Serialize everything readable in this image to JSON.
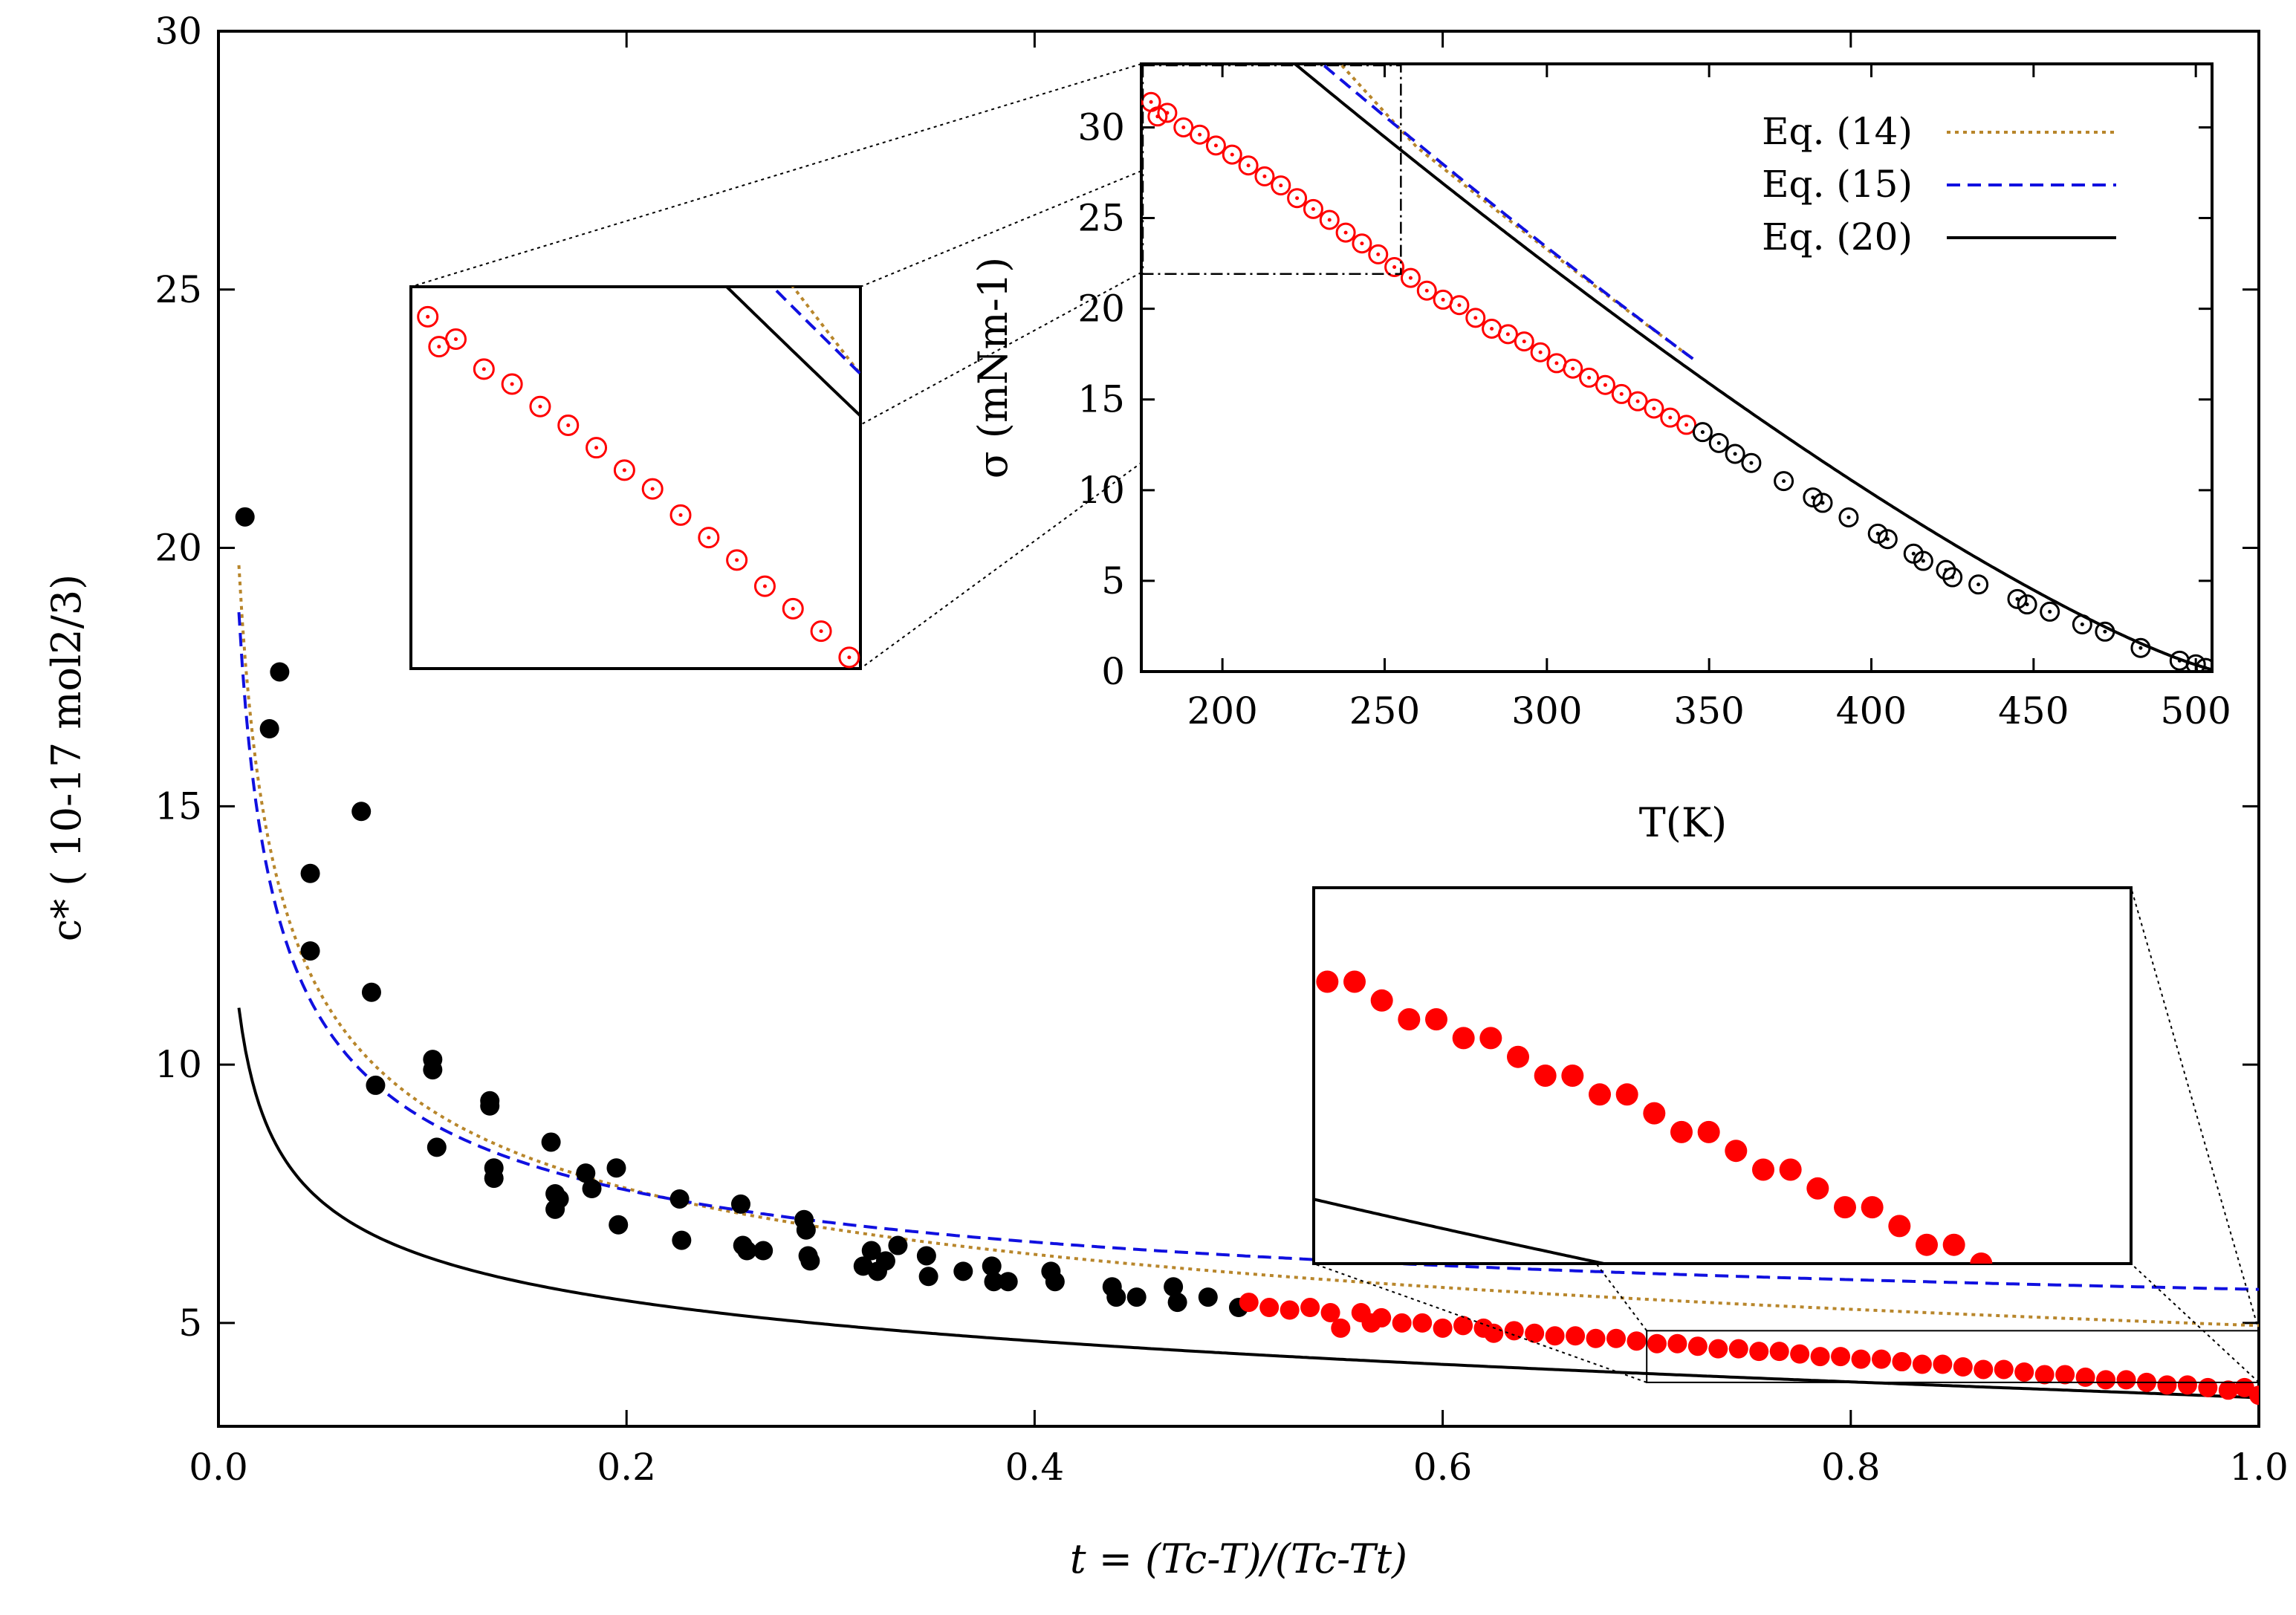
{
  "chart_data": [
    {
      "id": "main",
      "type": "scatter",
      "xlabel": "t = (Tc-T)/(Tc-Tt)",
      "ylabel": "c* ( 10-17 mol2/3)",
      "xlim": [
        0.0,
        1.0
      ],
      "ylim": [
        3,
        30
      ],
      "xticks": [
        "0.0",
        "0.2",
        "0.4",
        "0.6",
        "0.8",
        "1.0"
      ],
      "yticks": [
        "5",
        "10",
        "15",
        "20",
        "25",
        "30"
      ],
      "series": [
        {
          "name": "data (black)",
          "color": "#000000",
          "marker": "filled-circle",
          "x": [
            0.013,
            0.025,
            0.03,
            0.045,
            0.045,
            0.07,
            0.075,
            0.077,
            0.105,
            0.105,
            0.107,
            0.133,
            0.133,
            0.135,
            0.135,
            0.163,
            0.165,
            0.165,
            0.167,
            0.18,
            0.183,
            0.195,
            0.196,
            0.226,
            0.227,
            0.256,
            0.257,
            0.259,
            0.267,
            0.287,
            0.288,
            0.289,
            0.29,
            0.316,
            0.32,
            0.323,
            0.327,
            0.333,
            0.347,
            0.348,
            0.365,
            0.379,
            0.38,
            0.387,
            0.408,
            0.41,
            0.438,
            0.44,
            0.45,
            0.468,
            0.47,
            0.485,
            0.5
          ],
          "y": [
            20.6,
            16.5,
            17.6,
            13.7,
            12.2,
            14.9,
            11.4,
            9.6,
            10.1,
            9.9,
            8.4,
            9.3,
            9.2,
            8.0,
            7.8,
            8.5,
            7.5,
            7.2,
            7.4,
            7.9,
            7.6,
            8.0,
            6.9,
            7.4,
            6.6,
            7.3,
            6.5,
            6.4,
            6.4,
            7.0,
            6.8,
            6.3,
            6.2,
            6.1,
            6.4,
            6.0,
            6.2,
            6.5,
            6.3,
            5.9,
            6.0,
            6.1,
            5.8,
            5.8,
            6.0,
            5.8,
            5.7,
            5.5,
            5.5,
            5.7,
            5.4,
            5.5,
            5.3
          ]
        },
        {
          "name": "data (red)",
          "color": "#ff0000",
          "marker": "filled-circle",
          "x": [
            0.505,
            0.515,
            0.525,
            0.535,
            0.545,
            0.55,
            0.56,
            0.565,
            0.57,
            0.58,
            0.59,
            0.6,
            0.61,
            0.62,
            0.625,
            0.635,
            0.645,
            0.655,
            0.665,
            0.675,
            0.685,
            0.695,
            0.705,
            0.715,
            0.725,
            0.735,
            0.745,
            0.755,
            0.765,
            0.775,
            0.785,
            0.795,
            0.805,
            0.815,
            0.825,
            0.835,
            0.845,
            0.855,
            0.865,
            0.875,
            0.885,
            0.895,
            0.905,
            0.915,
            0.925,
            0.935,
            0.945,
            0.955,
            0.965,
            0.975,
            0.985,
            0.993,
            1.0
          ],
          "y": [
            5.4,
            5.3,
            5.25,
            5.3,
            5.2,
            4.9,
            5.2,
            5.0,
            5.1,
            5.0,
            5.0,
            4.9,
            4.95,
            4.9,
            4.8,
            4.85,
            4.8,
            4.75,
            4.75,
            4.7,
            4.7,
            4.65,
            4.6,
            4.6,
            4.55,
            4.5,
            4.5,
            4.45,
            4.45,
            4.4,
            4.35,
            4.35,
            4.3,
            4.3,
            4.25,
            4.2,
            4.2,
            4.15,
            4.1,
            4.1,
            4.05,
            4.0,
            4.0,
            3.95,
            3.9,
            3.9,
            3.85,
            3.8,
            3.8,
            3.75,
            3.7,
            3.75,
            3.6
          ]
        },
        {
          "name": "Eq. (14)",
          "color": "#b8862b",
          "style": "dotted",
          "func": "eq14",
          "xrange": [
            0.01,
            1.0
          ]
        },
        {
          "name": "Eq. (15)",
          "color": "#1010e0",
          "style": "dashed",
          "func": "eq15",
          "xrange": [
            0.01,
            1.0
          ]
        },
        {
          "name": "Eq. (20)",
          "color": "#000000",
          "style": "solid",
          "func": "eq20",
          "xrange": [
            0.01,
            1.0
          ]
        }
      ],
      "zoom_box": {
        "x": [
          0.7,
          1.0
        ],
        "y": [
          3.85,
          4.85
        ]
      }
    },
    {
      "id": "inset",
      "type": "scatter",
      "xlabel": "T(K)",
      "ylabel": "σ (mNm-1)",
      "xlim": [
        175,
        505
      ],
      "ylim": [
        0,
        33.5
      ],
      "xticks": [
        "200",
        "250",
        "300",
        "350",
        "400",
        "450",
        "500"
      ],
      "yticks": [
        "0",
        "5",
        "10",
        "15",
        "20",
        "25",
        "30"
      ],
      "legend": [
        {
          "label": "Eq. (14)",
          "color": "#b8862b",
          "style": "dotted"
        },
        {
          "label": "Eq. (15)",
          "color": "#1010e0",
          "style": "dashed"
        },
        {
          "label": "Eq. (20)",
          "color": "#000000",
          "style": "solid"
        }
      ],
      "series": [
        {
          "name": "data (red open)",
          "color": "#ff0000",
          "marker": "open-circle",
          "x": [
            178,
            180,
            183,
            188,
            193,
            198,
            203,
            208,
            213,
            218,
            223,
            228,
            233,
            238,
            243,
            248,
            253,
            258,
            263,
            268,
            273,
            278,
            283,
            288,
            293,
            298,
            303,
            308,
            313,
            318,
            323,
            328,
            333,
            338,
            343
          ],
          "y": [
            31.4,
            30.6,
            30.8,
            30.0,
            29.6,
            29.0,
            28.5,
            27.9,
            27.3,
            26.8,
            26.1,
            25.5,
            24.9,
            24.2,
            23.6,
            23.0,
            22.3,
            21.7,
            21.0,
            20.5,
            20.2,
            19.5,
            18.9,
            18.6,
            18.2,
            17.6,
            17.0,
            16.7,
            16.2,
            15.8,
            15.3,
            14.9,
            14.5,
            14.0,
            13.6
          ]
        },
        {
          "name": "data (black open)",
          "color": "#000000",
          "marker": "open-circle",
          "x": [
            348,
            353,
            358,
            363,
            373,
            382,
            385,
            393,
            402,
            405,
            413,
            416,
            423,
            425,
            433,
            445,
            448,
            455,
            465,
            472,
            483,
            495,
            500,
            503
          ],
          "y": [
            13.2,
            12.6,
            12.0,
            11.5,
            10.5,
            9.6,
            9.3,
            8.5,
            7.6,
            7.3,
            6.5,
            6.1,
            5.6,
            5.2,
            4.8,
            4.0,
            3.7,
            3.3,
            2.6,
            2.2,
            1.3,
            0.6,
            0.4,
            0.2
          ]
        },
        {
          "name": "Eq. (14)",
          "color": "#b8862b",
          "style": "dotted",
          "func": "sig14",
          "xrange": [
            178,
            345
          ]
        },
        {
          "name": "Eq. (15)",
          "color": "#1010e0",
          "style": "dashed",
          "func": "sig15",
          "xrange": [
            178,
            345
          ]
        },
        {
          "name": "Eq. (20)",
          "color": "#000000",
          "style": "solid",
          "func": "sig20",
          "xrange": [
            178,
            505
          ]
        }
      ],
      "zoom_box": {
        "x": [
          175,
          255
        ],
        "y": [
          22,
          33.5
        ]
      }
    }
  ]
}
